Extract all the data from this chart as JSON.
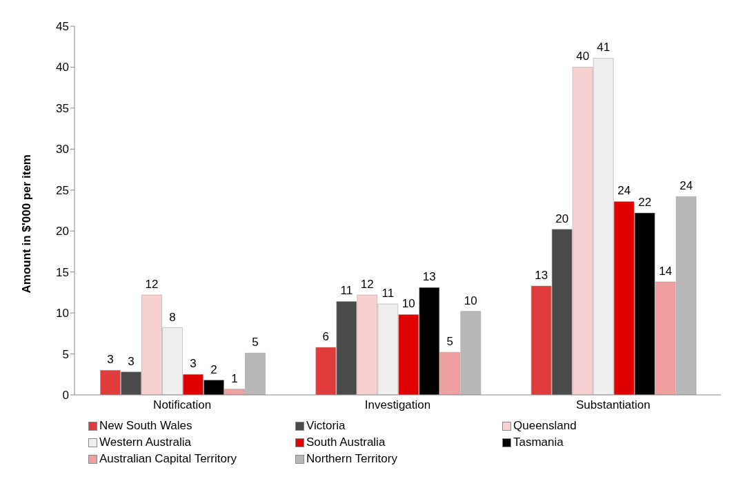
{
  "chart_data": {
    "type": "bar",
    "ylabel": "Amount in $'000 per item",
    "categories": [
      "Notification",
      "Investigation",
      "Substantiation"
    ],
    "series": [
      {
        "name": "New South Wales",
        "color": "#e03c3c",
        "values": [
          3.0,
          5.8,
          13.3
        ],
        "value_labels": [
          "3",
          "6",
          "13"
        ]
      },
      {
        "name": "Victoria",
        "color": "#4a4a4a",
        "values": [
          2.8,
          11.4,
          20.2
        ],
        "value_labels": [
          "3",
          "11",
          "20"
        ]
      },
      {
        "name": "Queensland",
        "color": "#f9d0d0",
        "values": [
          12.2,
          12.2,
          40.0
        ],
        "value_labels": [
          "12",
          "12",
          "40"
        ]
      },
      {
        "name": "Western Australia",
        "color": "#eeeeee",
        "values": [
          8.2,
          11.1,
          41.1
        ],
        "value_labels": [
          "8",
          "11",
          "41"
        ]
      },
      {
        "name": "South Australia",
        "color": "#e00000",
        "values": [
          2.5,
          9.8,
          23.6
        ],
        "value_labels": [
          "3",
          "10",
          "24"
        ]
      },
      {
        "name": "Tasmania",
        "color": "#000000",
        "values": [
          1.8,
          13.1,
          22.2
        ],
        "value_labels": [
          "2",
          "13",
          "22"
        ]
      },
      {
        "name": "Australian Capital Territory",
        "color": "#f0a0a0",
        "values": [
          0.7,
          5.2,
          13.8
        ],
        "value_labels": [
          "1",
          "5",
          "14"
        ]
      },
      {
        "name": "Northern Territory",
        "color": "#b8b8b8",
        "values": [
          5.1,
          10.2,
          24.2
        ],
        "value_labels": [
          "5",
          "10",
          "24"
        ]
      }
    ],
    "ylim": [
      0,
      45
    ],
    "yticks": [
      0,
      5,
      10,
      15,
      20,
      25,
      30,
      35,
      40,
      45
    ],
    "grid": false,
    "legend": "bottom"
  }
}
